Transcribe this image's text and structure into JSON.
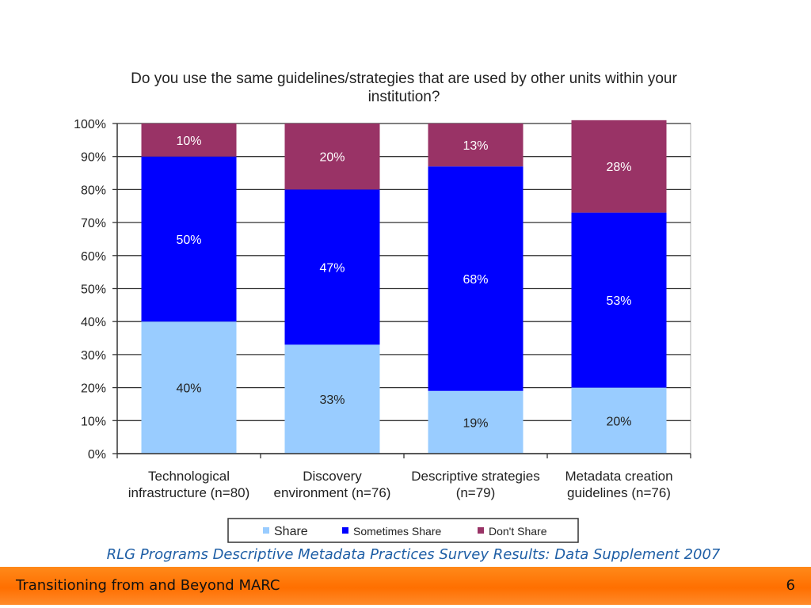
{
  "slide": {
    "footer_title": "Transitioning from and Beyond MARC",
    "page_number": "6",
    "source": "RLG Programs Descriptive Metadata Practices Survey Results: Data Supplement 2007"
  },
  "chart_data": {
    "type": "bar",
    "stacked": true,
    "title": "Do you use the same guidelines/strategies that are used by other units within your institution?",
    "categories": [
      "Technological infrastructure (n=80)",
      "Discovery environment (n=76)",
      "Descriptive strategies (n=79)",
      "Metadata creation guidelines (n=76)"
    ],
    "category_lines": [
      [
        "Technological",
        "infrastructure (n=80)"
      ],
      [
        "Discovery",
        "environment (n=76)"
      ],
      [
        "Descriptive strategies",
        "(n=79)"
      ],
      [
        "Metadata creation",
        "guidelines (n=76)"
      ]
    ],
    "series": [
      {
        "name": "Share",
        "values": [
          40,
          33,
          19,
          20
        ],
        "labels": [
          "40%",
          "33%",
          "19%",
          "20%"
        ],
        "color": "#99ccff"
      },
      {
        "name": "Sometimes Share",
        "values": [
          50,
          47,
          68,
          53
        ],
        "labels": [
          "50%",
          "47%",
          "68%",
          "53%"
        ],
        "color": "#0000ff"
      },
      {
        "name": "Don't Share",
        "values": [
          10,
          20,
          13,
          28
        ],
        "labels": [
          "10%",
          "20%",
          "13%",
          "28%"
        ],
        "color": "#993366"
      }
    ],
    "ylim": [
      0,
      100
    ],
    "yticks": [
      "0%",
      "10%",
      "20%",
      "30%",
      "40%",
      "50%",
      "60%",
      "70%",
      "80%",
      "90%",
      "100%"
    ],
    "grid": true,
    "legend_position": "bottom",
    "xlabel": "",
    "ylabel": ""
  }
}
